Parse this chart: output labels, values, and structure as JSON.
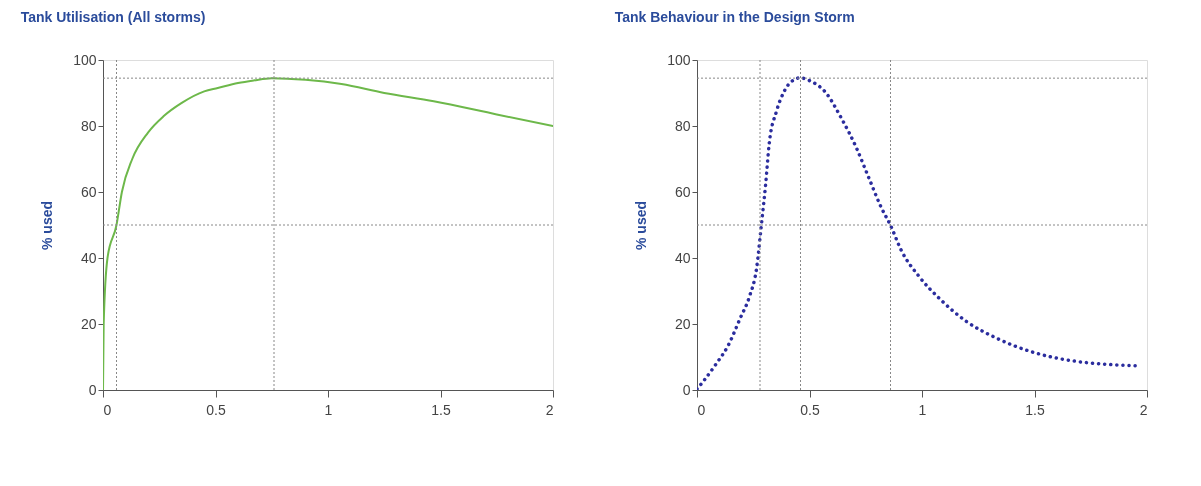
{
  "chart_data": [
    {
      "type": "line",
      "title": "Tank Utilisation (All storms)",
      "ylabel": "% used",
      "x": [
        0,
        0.003,
        0.02,
        0.06,
        0.084,
        0.13,
        0.2,
        0.27,
        0.35,
        0.45,
        0.51,
        0.6,
        0.67,
        0.75,
        0.9,
        1.06,
        1.25,
        1.47,
        1.75,
        2
      ],
      "series": [
        {
          "color": "#6db84a",
          "values": [
            0,
            20,
            40,
            50,
            60,
            70,
            78,
            83,
            87,
            90.5,
            91.5,
            93,
            93.8,
            94.5,
            94,
            92.7,
            90,
            87.5,
            83.5,
            80
          ]
        }
      ],
      "xlim": [
        0,
        2
      ],
      "xticks": [
        0,
        0.5,
        1,
        1.5,
        2
      ],
      "ylim": [
        0,
        100
      ],
      "yticks": [
        0,
        20,
        40,
        60,
        80,
        100
      ],
      "line_style": "solid",
      "grid": false,
      "ref_lines": [
        {
          "axis": "y",
          "value": 94.5,
          "color": "#888888",
          "line_style": "dotted"
        },
        {
          "axis": "y",
          "value": 50,
          "color": "#888888",
          "line_style": "dotted"
        },
        {
          "axis": "x",
          "value": 0.06,
          "color": "#888888",
          "line_style": "dotted"
        },
        {
          "axis": "x",
          "value": 0.76,
          "color": "#888888",
          "line_style": "dotted"
        }
      ]
    },
    {
      "type": "line",
      "title": "Tank Behaviour in the Design Storm",
      "ylabel": "% used",
      "x": [
        0,
        0.03,
        0.085,
        0.137,
        0.193,
        0.233,
        0.265,
        0.286,
        0.305,
        0.321,
        0.353,
        0.386,
        0.426,
        0.46,
        0.498,
        0.57,
        0.643,
        0.707,
        0.763,
        0.819,
        0.86,
        0.908,
        0.988,
        1.084,
        1.197,
        1.325,
        1.486,
        1.663,
        1.968
      ],
      "series": [
        {
          "color": "#2b2d9e",
          "values": [
            0.3,
            2.8,
            7.9,
            13.3,
            21.9,
            28.3,
            37,
            50,
            62.3,
            74.7,
            84.4,
            90.3,
            93.8,
            94.6,
            93.8,
            90.3,
            82.2,
            73.6,
            64.4,
            55.3,
            49.9,
            42.3,
            34.3,
            27.3,
            20.8,
            15.9,
            11.6,
            8.9,
            7.3
          ]
        }
      ],
      "xlim": [
        0,
        2
      ],
      "xticks": [
        0,
        0.5,
        1,
        1.5,
        2
      ],
      "ylim": [
        0,
        100
      ],
      "yticks": [
        0,
        20,
        40,
        60,
        80,
        100
      ],
      "line_style": "dotted",
      "grid": false,
      "ref_lines": [
        {
          "axis": "y",
          "value": 94.5,
          "color": "#888888",
          "line_style": "dotted"
        },
        {
          "axis": "y",
          "value": 50,
          "color": "#888888",
          "line_style": "dotted"
        },
        {
          "axis": "x",
          "value": 0.28,
          "color": "#888888",
          "line_style": "dotted"
        },
        {
          "axis": "x",
          "value": 0.46,
          "color": "#888888",
          "line_style": "dotted"
        },
        {
          "axis": "x",
          "value": 0.86,
          "color": "#888888",
          "line_style": "dotted"
        }
      ]
    }
  ]
}
